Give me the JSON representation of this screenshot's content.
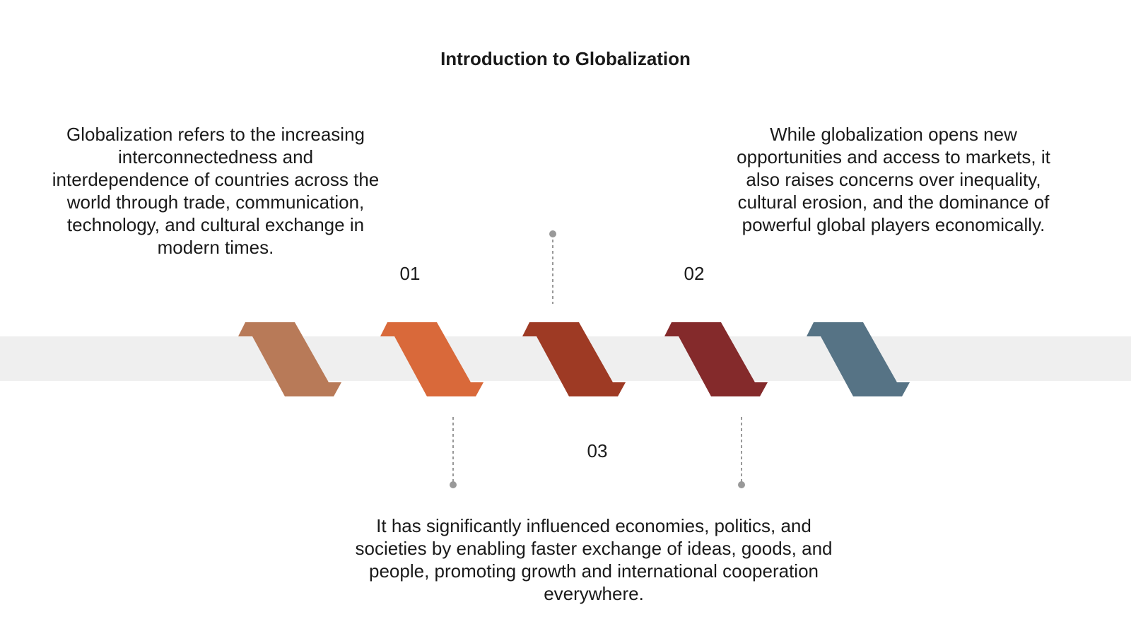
{
  "title": "Introduction to Globalization",
  "items": [
    {
      "number": "01",
      "text": "Globalization refers to the increasing interconnectedness and interdependence of countries across the world through trade, communication, technology, and cultural exchange in modern times."
    },
    {
      "number": "02",
      "text": "While globalization opens new opportunities and access to markets, it also raises concerns over inequality, cultural erosion, and the dominance of powerful global players economically."
    },
    {
      "number": "03",
      "text": "It has significantly influenced economies, politics, and societies by enabling faster exchange of ideas, goods, and people, promoting growth and international cooperation everywhere."
    }
  ]
}
